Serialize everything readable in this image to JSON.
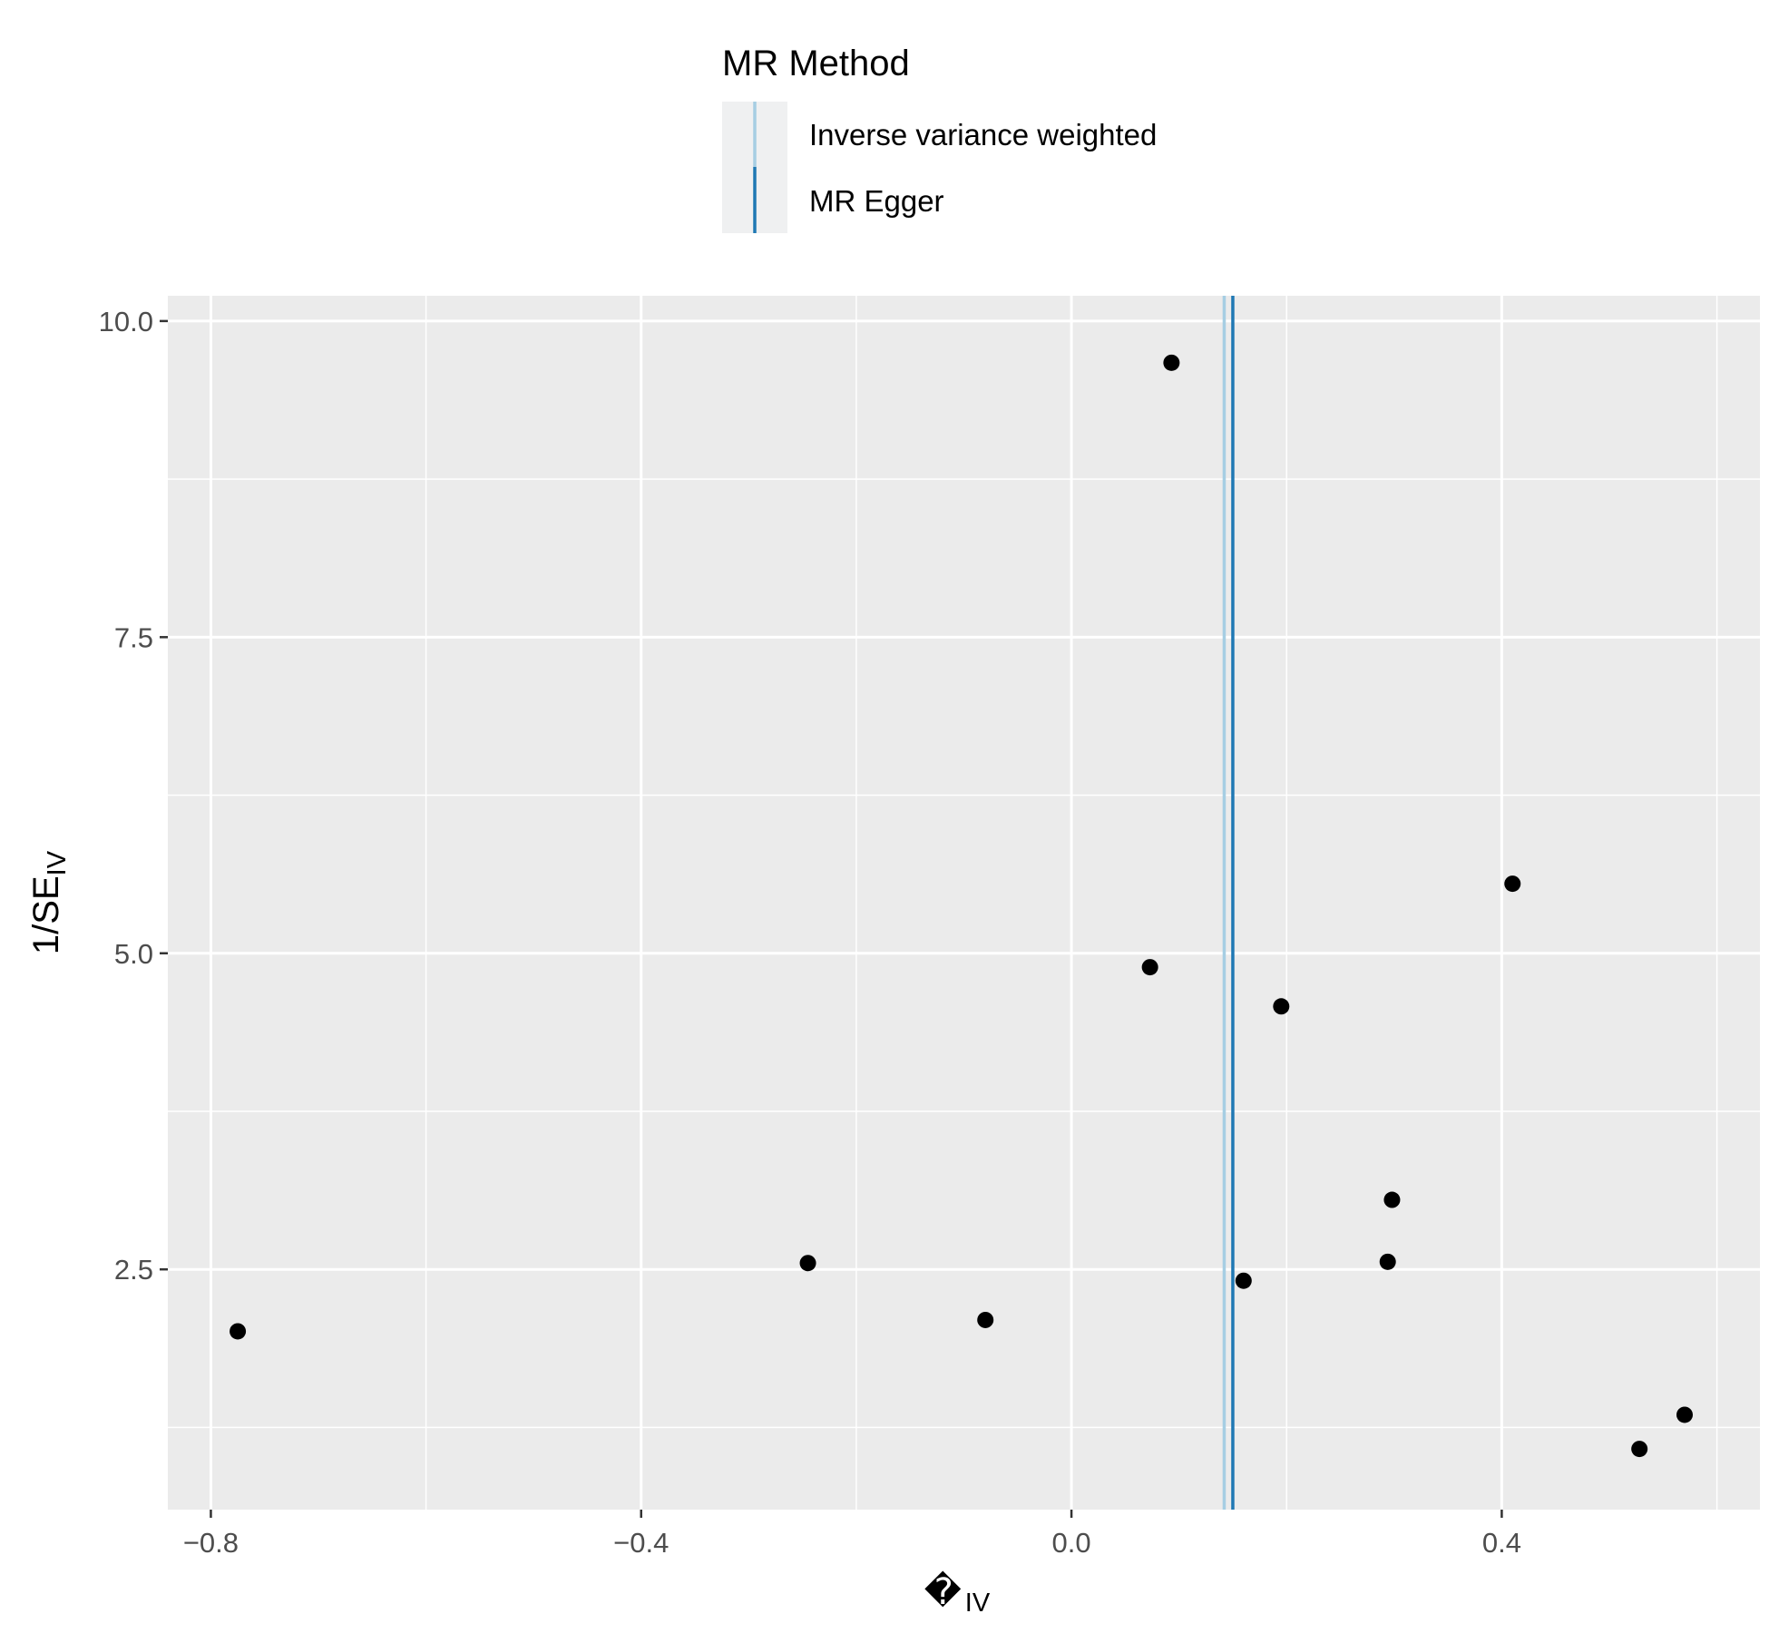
{
  "chart_data": {
    "type": "scatter",
    "legend": {
      "title": "MR Method",
      "placement": "top",
      "entries": [
        {
          "label": "Inverse variance weighted",
          "color": "#a6cee3"
        },
        {
          "label": "MR Egger",
          "color": "#1f78b4"
        }
      ]
    },
    "xlabel": {
      "main": "�",
      "sub": "IV"
    },
    "ylabel": {
      "main": "1/SE",
      "sub": "IV"
    },
    "xlim": [
      -0.84,
      0.64
    ],
    "ylim": [
      0.6,
      10.2
    ],
    "x_ticks": [
      {
        "value": -0.8,
        "label": "−0.8"
      },
      {
        "value": -0.4,
        "label": "−0.4"
      },
      {
        "value": 0.0,
        "label": "0.0"
      },
      {
        "value": 0.4,
        "label": "0.4"
      }
    ],
    "x_minor": [
      -0.6,
      -0.2,
      0.2,
      0.6
    ],
    "y_ticks": [
      {
        "value": 2.5,
        "label": "2.5"
      },
      {
        "value": 5.0,
        "label": "5.0"
      },
      {
        "value": 7.5,
        "label": "7.5"
      },
      {
        "value": 10.0,
        "label": "10.0"
      }
    ],
    "y_minor": [
      1.25,
      3.75,
      6.25,
      8.75
    ],
    "grid": true,
    "background": "#ebebeb",
    "vlines": [
      {
        "method": "Inverse variance weighted",
        "x": 0.142,
        "color": "#a6cee3"
      },
      {
        "method": "MR Egger",
        "x": 0.15,
        "color": "#1f78b4"
      }
    ],
    "points": [
      {
        "x": 0.093,
        "y": 9.67
      },
      {
        "x": 0.073,
        "y": 4.89
      },
      {
        "x": 0.195,
        "y": 4.58
      },
      {
        "x": 0.41,
        "y": 5.55
      },
      {
        "x": 0.298,
        "y": 3.05
      },
      {
        "x": 0.294,
        "y": 2.56
      },
      {
        "x": 0.16,
        "y": 2.41
      },
      {
        "x": -0.08,
        "y": 2.1
      },
      {
        "x": -0.245,
        "y": 2.55
      },
      {
        "x": -0.775,
        "y": 2.01
      },
      {
        "x": 0.57,
        "y": 1.35
      },
      {
        "x": 0.528,
        "y": 1.08
      }
    ]
  }
}
